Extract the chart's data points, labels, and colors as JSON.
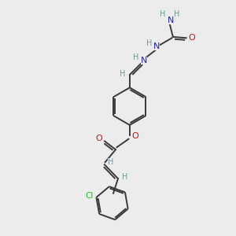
{
  "bg_color": "#ececec",
  "atom_colors": {
    "C": "#3a3a3a",
    "H": "#6a9a9a",
    "N": "#2222bb",
    "O": "#cc1111",
    "Cl": "#22bb22"
  },
  "bond_color": "#3a3a3a",
  "bond_width": 1.4,
  "fig_w": 3.0,
  "fig_h": 3.0,
  "dpi": 100
}
